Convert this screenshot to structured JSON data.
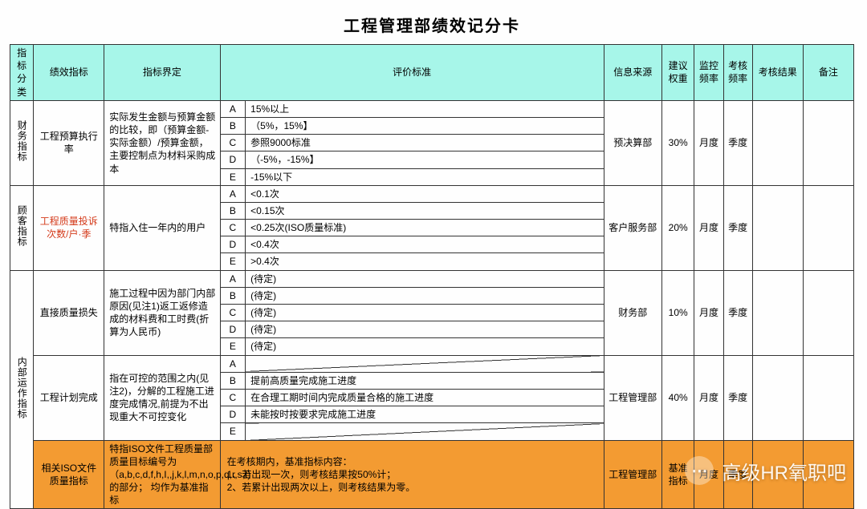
{
  "title": "工程管理部绩效记分卡",
  "headers": {
    "category": "指标分类",
    "indicator": "绩效指标",
    "definition": "指标界定",
    "standard": "评价标准",
    "source": "信息来源",
    "weight": "建议权重",
    "monitor_freq": "监控频率",
    "check_freq": "考核频率",
    "result": "考核结果",
    "remark": "备注"
  },
  "grades": [
    "A",
    "B",
    "C",
    "D",
    "E"
  ],
  "rows": [
    {
      "category": "财务指标",
      "indicator": "工程预算执行率",
      "definition": "实际发生金额与预算金额的比较，即（预算金额-实际金额）/预算金额，主要控制点为材料采购成本",
      "standards": [
        "15%以上",
        "（5%，15%】",
        "参照9000标准",
        "（-5%，-15%】",
        "-15%以下"
      ],
      "source": "预决算部",
      "weight": "30%",
      "monitor": "月度",
      "check": "季度"
    },
    {
      "category": "顾客指标",
      "indicator": "工程质量投诉次数/户·季",
      "indicator_red": true,
      "definition": "特指入住一年内的用户",
      "standards": [
        "<0.1次",
        "<0.15次",
        "<0.25次(ISO质量标准)",
        "<0.4次",
        ">0.4次"
      ],
      "source": "客户服务部",
      "weight": "20%",
      "monitor": "月度",
      "check": "季度"
    },
    {
      "category": "内部运作指标",
      "indicator": "直接质量损失",
      "definition": "施工过程中因为部门内部原因(见注1)返工返修造成的材料费和工时费(折算为人民币)",
      "standards": [
        "(待定)",
        "(待定)",
        "(待定)",
        "(待定)",
        "(待定)"
      ],
      "source": "财务部",
      "weight": "10%",
      "monitor": "月度",
      "check": "季度"
    },
    {
      "indicator": "工程计划完成",
      "definition": "指在可控的范围之内(见注2)，分解的工程施工进度完成情况,前提为不出现重大不可控变化",
      "standards": [
        "",
        "提前高质量完成施工进度",
        "在合理工期时间内完成质量合格的施工进度",
        "未能按时按要求完成施工进度",
        ""
      ],
      "diag": [
        true,
        false,
        false,
        false,
        true
      ],
      "source": "工程管理部",
      "weight": "40%",
      "monitor": "月度",
      "check": "季度"
    },
    {
      "indicator": "相关ISO文件质量指标",
      "definition": "特指ISO文件工程质量部质量目标编号为（a,b,c,d,f,h,I,,j,k,l,m,n,o,p,q,r,s,t)的部分；  均作为基准指标",
      "standard_block": "在考核期内，基准指标内容：\n1、若出现一次，则考核结果按50%计；\n2、若累计出现两次以上，则考核结果为零。",
      "source": "工程管理部",
      "weight": "基准指标",
      "monitor": "月度",
      "check": "季度",
      "orange": true
    }
  ],
  "watermark": {
    "text": "高级HR氧职吧",
    "icon": "⋯"
  }
}
